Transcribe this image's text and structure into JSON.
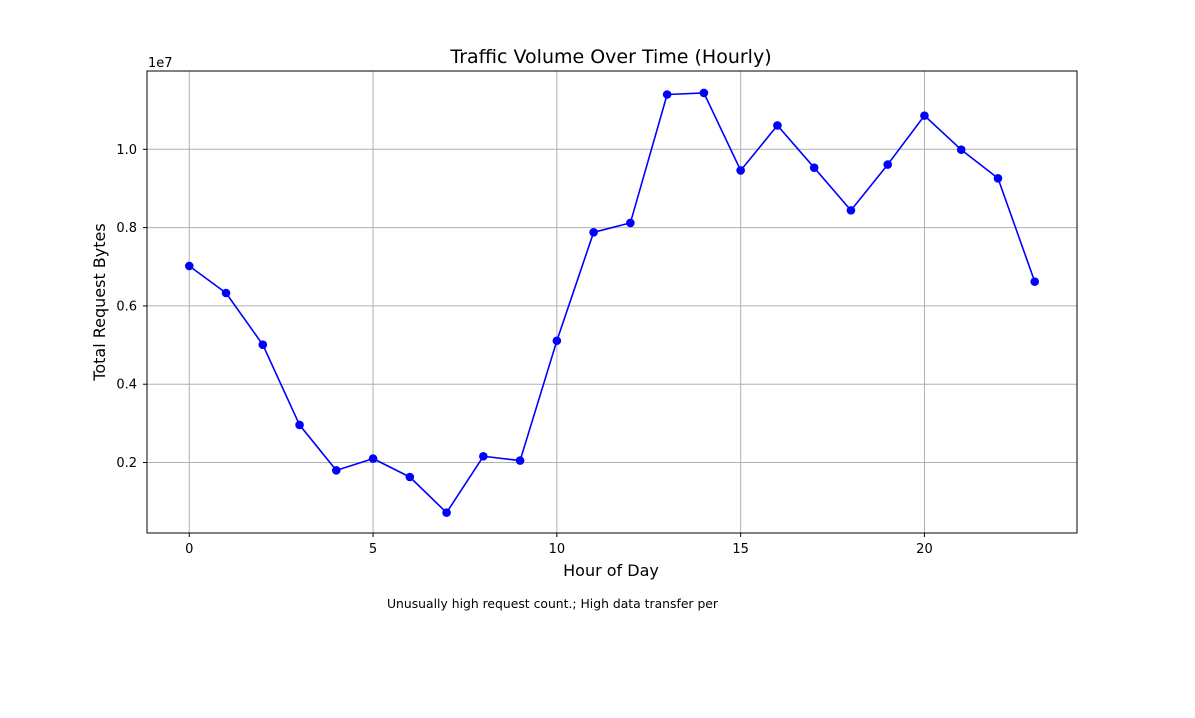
{
  "chart_data": {
    "type": "line",
    "title": "Traffic Volume Over Time (Hourly)",
    "xlabel": "Hour of Day",
    "ylabel": "Total Request Bytes",
    "y_offset_label": "1e7",
    "x": [
      0,
      1,
      2,
      3,
      4,
      5,
      6,
      7,
      8,
      9,
      10,
      11,
      12,
      13,
      14,
      15,
      16,
      17,
      18,
      19,
      20,
      21,
      22,
      23
    ],
    "series": [
      {
        "values": [
          7020000,
          6330000,
          5010000,
          2960000,
          1800000,
          2100000,
          1630000,
          720000,
          2160000,
          2050000,
          5110000,
          7880000,
          8120000,
          11400000,
          11440000,
          9460000,
          10610000,
          9530000,
          8440000,
          9610000,
          10860000,
          9990000,
          9260000,
          6620000
        ],
        "color": "#0000ff",
        "marker": "circle"
      }
    ],
    "xlim": [
      -1.15,
      24.15
    ],
    "ylim": [
      200000,
      12000000
    ],
    "x_ticks": [
      0,
      5,
      10,
      15,
      20
    ],
    "x_tick_labels": [
      "0",
      "5",
      "10",
      "15",
      "20"
    ],
    "y_ticks": [
      2000000,
      4000000,
      6000000,
      8000000,
      10000000
    ],
    "y_tick_labels": [
      "0.2",
      "0.4",
      "0.6",
      "0.8",
      "1.0"
    ],
    "grid": true,
    "annotation": "Unusually high request count.; High data transfer per"
  }
}
